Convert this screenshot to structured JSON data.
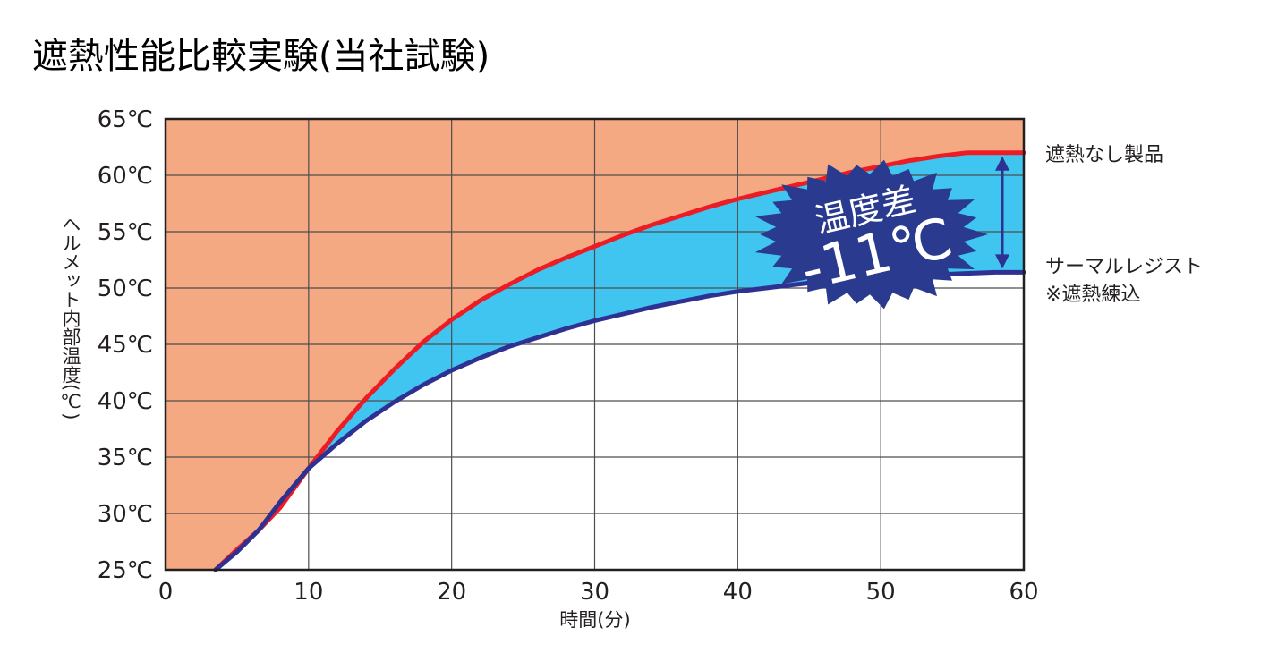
{
  "chart_data": {
    "type": "area",
    "title": "遮熱性能比較実験(当社試験)",
    "xlabel": "時間(分)",
    "ylabel": "ヘルメット内部温度(℃)",
    "xlim": [
      0,
      60
    ],
    "ylim": [
      25,
      65
    ],
    "x_ticks": [
      "0",
      "10",
      "20",
      "30",
      "40",
      "50",
      "60"
    ],
    "y_ticks": [
      "25℃",
      "30℃",
      "35℃",
      "40℃",
      "45℃",
      "50℃",
      "55℃",
      "60℃",
      "65℃"
    ],
    "grid": true,
    "series": [
      {
        "name": "遮熱なし製品",
        "color": "#ed1c24",
        "x": [
          3.5,
          5,
          6.5,
          8,
          10,
          12,
          14,
          16,
          18,
          20,
          22,
          24,
          26,
          28,
          30,
          32,
          34,
          36,
          38,
          40,
          42,
          44,
          46,
          48,
          50,
          52,
          54,
          56,
          58,
          60
        ],
        "y": [
          25,
          26.8,
          28.5,
          30.5,
          34,
          37.3,
          40.2,
          42.8,
          45.2,
          47.2,
          48.9,
          50.3,
          51.6,
          52.7,
          53.7,
          54.7,
          55.6,
          56.4,
          57.2,
          57.9,
          58.5,
          59.1,
          59.7,
          60.3,
          60.8,
          61.3,
          61.7,
          62.0,
          62.0,
          62.0
        ]
      },
      {
        "name": "サーマルレジスト",
        "sublabel": "※遮熱練込",
        "color": "#2e3192",
        "x": [
          3.5,
          5,
          6.5,
          8,
          10,
          12,
          14,
          16,
          18,
          20,
          22,
          24,
          26,
          28,
          30,
          32,
          34,
          36,
          38,
          40,
          42,
          44,
          46,
          48,
          50,
          52,
          54,
          56,
          58,
          60
        ],
        "y": [
          25,
          26.6,
          28.5,
          31,
          34,
          36.2,
          38.2,
          39.9,
          41.4,
          42.7,
          43.8,
          44.8,
          45.6,
          46.4,
          47.1,
          47.7,
          48.3,
          48.8,
          49.3,
          49.7,
          50.0,
          50.3,
          50.6,
          50.8,
          51.0,
          51.1,
          51.2,
          51.3,
          51.4,
          51.4
        ]
      }
    ],
    "annotation": {
      "line1": "温度差",
      "line2": "-11℃"
    },
    "colors": {
      "upper_fill": "#f5a983",
      "gap_fill": "#40c4f0",
      "burst_fill": "#2a3b8f",
      "grid": "#4d4d4d"
    }
  }
}
